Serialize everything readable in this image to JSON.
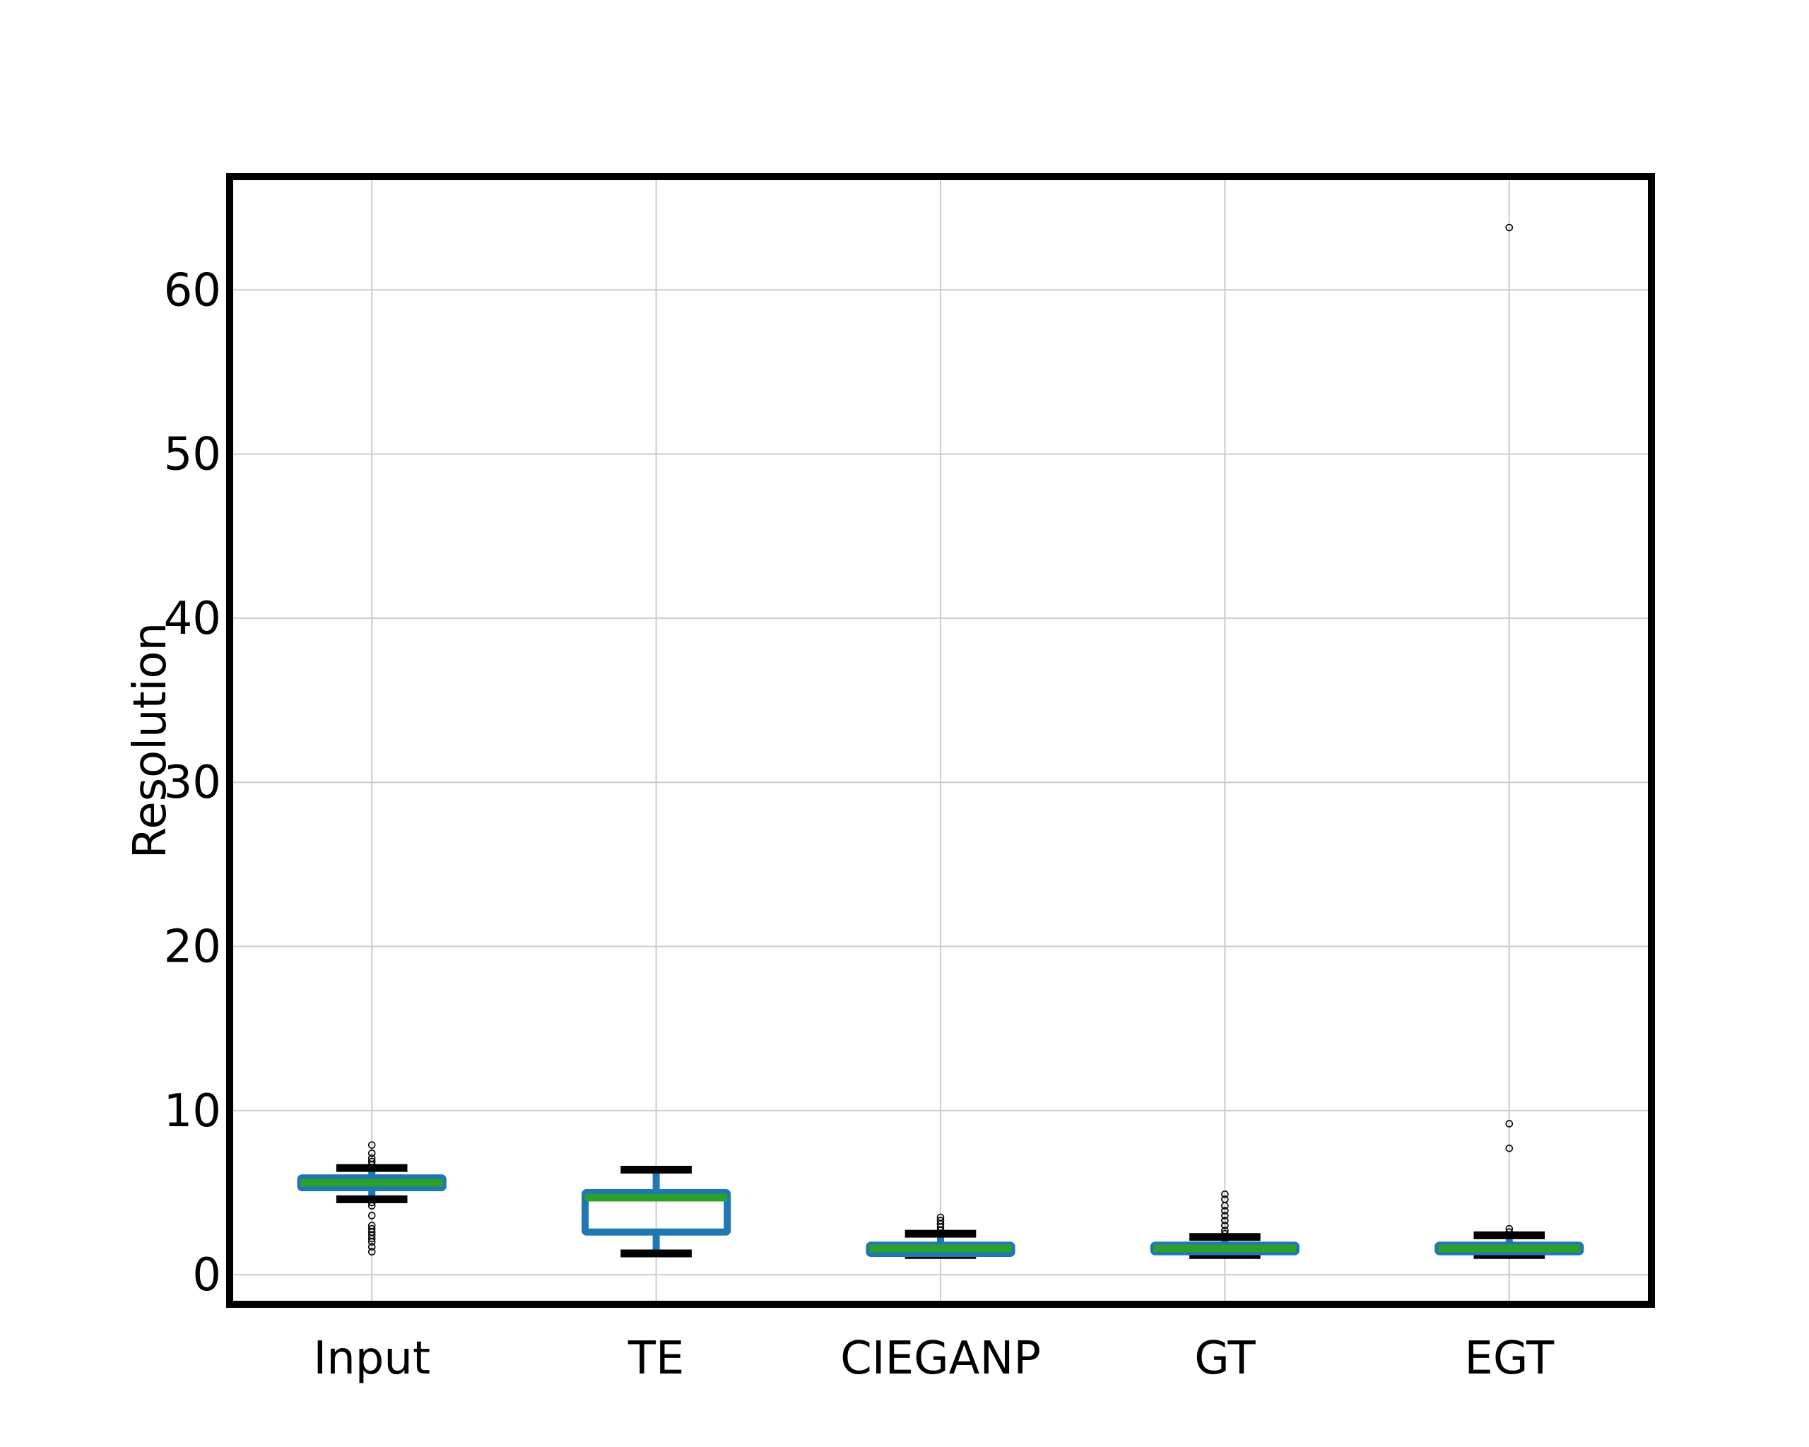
{
  "chart_data": {
    "type": "box",
    "title": "",
    "xlabel": "",
    "ylabel": "Resolution",
    "categories": [
      "Input",
      "TE",
      "CIEGANP",
      "GT",
      "EGT"
    ],
    "ylim": [
      -1.8,
      66.9
    ],
    "yticks": [
      0,
      10,
      20,
      30,
      40,
      50,
      60
    ],
    "grid": true,
    "colors": {
      "box": "#1f77b4",
      "median": "#2ca02c",
      "whisker": "#000000",
      "grid": "#cccccc"
    },
    "boxes": [
      {
        "name": "Input",
        "whislo": 4.6,
        "q1": 5.3,
        "med": 5.6,
        "q3": 5.9,
        "whishi": 6.5,
        "fliers": [
          7.9,
          7.4,
          7.1,
          6.9,
          6.7,
          4.4,
          4.2,
          3.6,
          3.0,
          2.8,
          2.6,
          2.4,
          2.2,
          2.0,
          1.7,
          1.4
        ]
      },
      {
        "name": "TE",
        "whislo": 1.3,
        "q1": 2.6,
        "med": 4.7,
        "q3": 5.0,
        "whishi": 6.4,
        "fliers": []
      },
      {
        "name": "CIEGANP",
        "whislo": 1.2,
        "q1": 1.3,
        "med": 1.6,
        "q3": 1.8,
        "whishi": 2.5,
        "fliers": [
          3.5,
          3.3,
          3.1,
          2.9,
          2.7
        ]
      },
      {
        "name": "GT",
        "whislo": 1.2,
        "q1": 1.4,
        "med": 1.6,
        "q3": 1.8,
        "whishi": 2.3,
        "fliers": [
          4.9,
          4.6,
          4.2,
          3.9,
          3.6,
          3.3,
          3.0,
          2.7,
          2.5
        ]
      },
      {
        "name": "EGT",
        "whislo": 1.2,
        "q1": 1.4,
        "med": 1.6,
        "q3": 1.8,
        "whishi": 2.4,
        "fliers": [
          63.8,
          9.2,
          7.7,
          2.8,
          2.6
        ]
      }
    ]
  }
}
